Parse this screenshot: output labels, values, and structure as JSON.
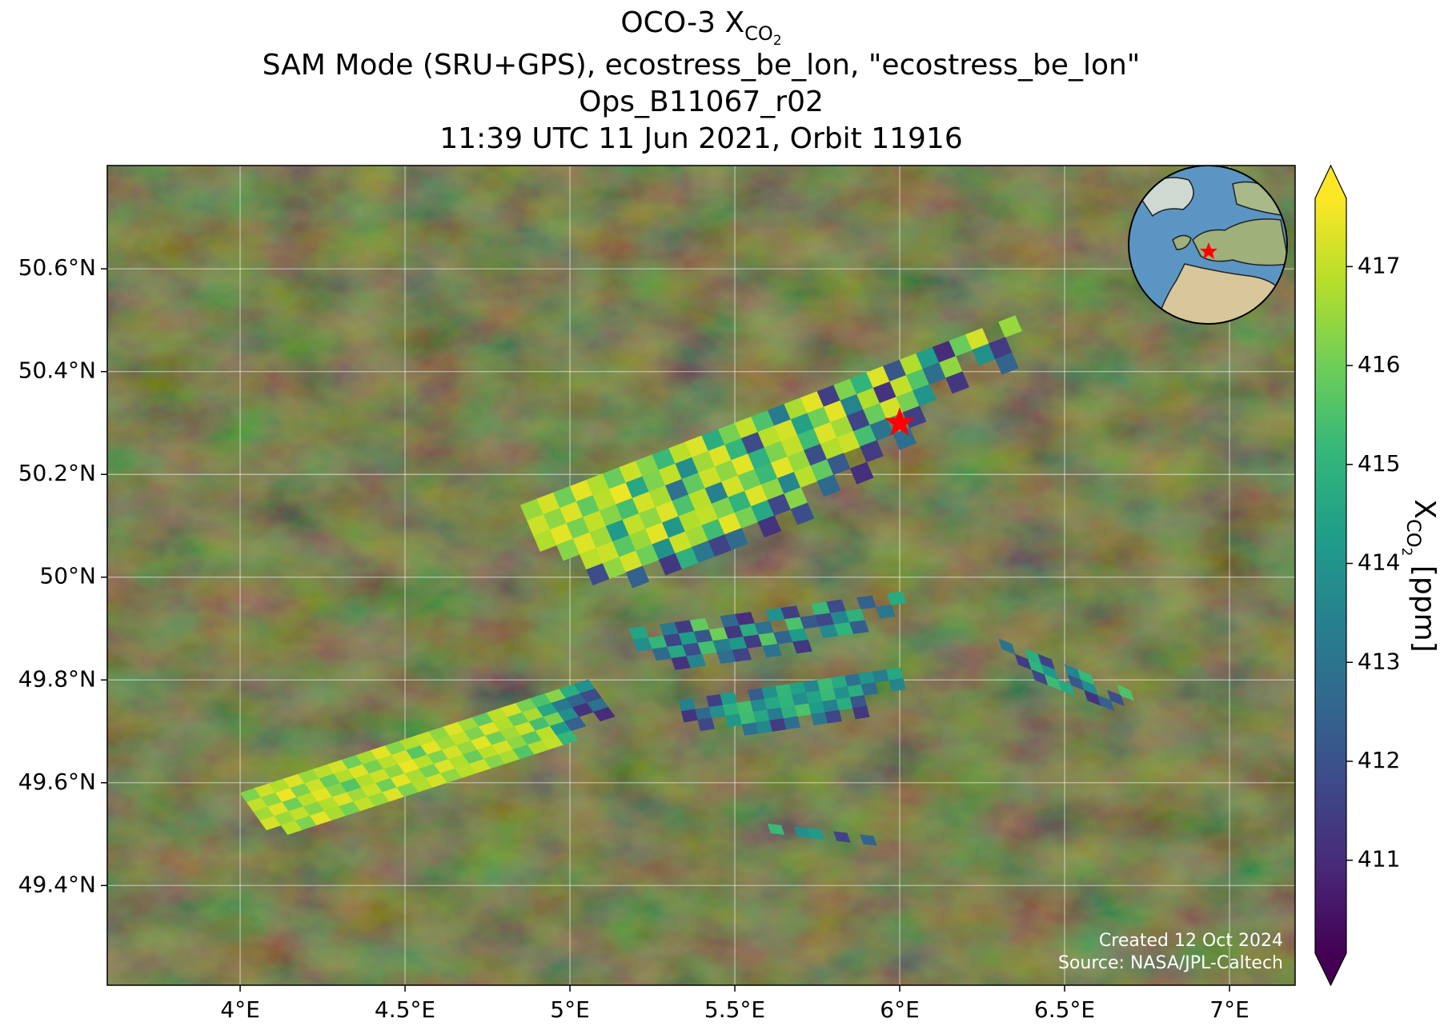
{
  "chart_data": {
    "type": "map",
    "title_parts": [
      "OCO-3 X",
      "CO",
      "2"
    ],
    "subtitle_lines": [
      "SAM Mode (SRU+GPS), ecostress_be_lon, \"ecostress_be_lon\"",
      "Ops_B11067_r02",
      "11:39 UTC 11 Jun 2021, Orbit 11916"
    ],
    "colorbar_label_parts": [
      "X",
      "CO",
      "2",
      " [ppm]"
    ],
    "annotations": [
      "Created 12 Oct 2024",
      "Source: NASA/JPL-Caltech"
    ],
    "colormap": "viridis",
    "grid": true,
    "xlim": [
      3.597,
      7.199
    ],
    "ylim": [
      49.206,
      50.801
    ],
    "xticks": [
      {
        "value": 4,
        "label": "4°E"
      },
      {
        "value": 4.5,
        "label": "4.5°E"
      },
      {
        "value": 5,
        "label": "5°E"
      },
      {
        "value": 5.5,
        "label": "5.5°E"
      },
      {
        "value": 6,
        "label": "6°E"
      },
      {
        "value": 6.5,
        "label": "6.5°E"
      },
      {
        "value": 7,
        "label": "7°E"
      }
    ],
    "yticks": [
      {
        "value": 49.4,
        "label": "49.4°N"
      },
      {
        "value": 49.6,
        "label": "49.6°N"
      },
      {
        "value": 49.8,
        "label": "49.8°N"
      },
      {
        "value": 50,
        "label": "50°N"
      },
      {
        "value": 50.2,
        "label": "50.2°N"
      },
      {
        "value": 50.4,
        "label": "50.4°N"
      },
      {
        "value": 50.6,
        "label": "50.6°N"
      }
    ],
    "clim": [
      410.06,
      417.69
    ],
    "cticks": [
      411,
      412,
      413,
      414,
      415,
      416,
      417
    ],
    "site": {
      "lon": 6.0,
      "lat": 50.3,
      "color": "#ff0000"
    },
    "swaths": [
      {
        "start": [
          4.0,
          49.58
        ],
        "along": [
          0.044,
          0.0092
        ],
        "across": [
          0.02,
          -0.018
        ],
        "rows": [
          [
            416.2,
            417.1,
            416.8,
            417.3,
            416.5,
            416.9,
            417.2,
            416.0,
            416.7,
            417.4,
            416.3,
            416.8,
            417.0,
            416.4,
            417.3,
            416.6,
            415.8,
            416.9,
            417.2,
            416.1,
            415.5,
            416.3,
            414.8,
            413.9
          ],
          [
            417.0,
            416.4,
            417.5,
            416.2,
            417.1,
            415.9,
            416.8,
            417.3,
            416.1,
            416.9,
            417.2,
            415.7,
            417.4,
            416.6,
            417.0,
            416.2,
            417.3,
            416.8,
            415.9,
            416.7,
            414.6,
            413.2,
            412.5,
            411.8
          ],
          [
            416.6,
            417.3,
            416.0,
            416.9,
            417.4,
            416.3,
            415.6,
            416.8,
            417.1,
            416.4,
            417.5,
            416.9,
            416.2,
            417.2,
            416.5,
            417.4,
            416.0,
            416.6,
            417.1,
            415.4,
            416.2,
            413.8,
            411.2,
            412.9
          ],
          [
            417.2,
            416.5,
            417.0,
            416.3,
            416.8,
            417.3,
            416.6,
            417.1,
            416.0,
            417.4,
            416.7,
            416.1,
            417.3,
            416.8,
            415.9,
            416.9,
            417.2,
            416.4,
            415.7,
            416.9,
            414.2,
            412.4,
            null,
            411.0
          ],
          [
            null,
            416.9,
            416.2,
            417.4,
            416.7,
            416.1,
            417.0,
            416.5,
            417.3,
            416.2,
            416.8,
            417.2,
            416.4,
            416.9,
            417.1,
            416.3,
            416.7,
            415.6,
            416.8,
            417.0,
            415.1,
            null,
            null,
            null
          ]
        ]
      },
      {
        "start": [
          4.85,
          50.14
        ],
        "along": [
          0.05,
          0.0123
        ],
        "across": [
          0.02,
          -0.03
        ],
        "rows": [
          [
            416.5,
            417.2,
            416.0,
            417.4,
            416.8,
            415.9,
            417.1,
            416.3,
            415.2,
            416.9,
            417.3,
            414.8,
            416.1,
            417.0,
            415.5,
            413.2,
            416.7,
            417.4,
            411.5,
            416.2,
            415.0,
            417.3,
            412.1,
            416.8,
            414.3,
            411.0,
            415.9,
            417.2,
            null,
            416.5
          ],
          [
            417.1,
            416.4,
            417.3,
            415.8,
            416.9,
            417.5,
            414.6,
            416.2,
            417.0,
            413.8,
            416.6,
            417.3,
            415.1,
            411.8,
            416.9,
            417.2,
            414.4,
            416.0,
            417.4,
            413.5,
            416.8,
            411.2,
            417.0,
            415.6,
            412.8,
            416.4,
            null,
            413.9,
            411.4,
            null
          ],
          [
            416.8,
            417.4,
            416.1,
            417.0,
            416.3,
            415.4,
            417.2,
            416.7,
            412.9,
            415.8,
            417.1,
            416.4,
            417.4,
            414.9,
            416.2,
            417.0,
            415.3,
            417.3,
            416.6,
            411.6,
            415.9,
            417.2,
            416.1,
            414.0,
            null,
            411.3,
            null,
            null,
            412.5,
            null
          ],
          [
            null,
            416.3,
            417.3,
            416.6,
            414.2,
            417.0,
            416.4,
            417.3,
            415.5,
            416.9,
            413.4,
            417.2,
            416.0,
            415.2,
            417.4,
            416.5,
            411.9,
            416.8,
            417.1,
            415.4,
            413.0,
            null,
            411.5,
            null,
            null,
            null,
            null,
            null,
            null,
            null
          ],
          [
            null,
            null,
            416.9,
            417.1,
            415.7,
            416.5,
            417.4,
            414.1,
            416.8,
            417.0,
            416.2,
            415.0,
            417.3,
            416.4,
            413.6,
            416.9,
            415.8,
            412.2,
            null,
            411.4,
            null,
            412.8,
            null,
            null,
            null,
            null,
            null,
            null,
            null,
            null
          ],
          [
            null,
            null,
            411.8,
            416.4,
            417.2,
            416.0,
            413.9,
            417.1,
            416.6,
            415.3,
            417.4,
            416.1,
            414.6,
            411.7,
            416.3,
            null,
            412.6,
            null,
            411.1,
            null,
            null,
            null,
            null,
            null,
            null,
            null,
            null,
            null,
            null,
            null
          ],
          [
            null,
            null,
            null,
            null,
            412.4,
            null,
            411.3,
            414.9,
            413.1,
            411.6,
            412.7,
            null,
            411.2,
            null,
            411.9,
            null,
            null,
            null,
            null,
            null,
            null,
            null,
            null,
            null,
            null,
            null,
            null,
            null,
            null,
            null
          ]
        ]
      },
      {
        "start": [
          5.18,
          49.9
        ],
        "along": [
          0.046,
          0.004
        ],
        "across": [
          0.012,
          -0.022
        ],
        "rows": [
          [
            414.5,
            null,
            413.2,
            411.4,
            415.8,
            null,
            412.6,
            411.1,
            null,
            413.9,
            411.5,
            null,
            415.2,
            411.8,
            null,
            412.4,
            null,
            414.7
          ],
          [
            413.8,
            415.1,
            411.6,
            414.3,
            412.1,
            416.0,
            411.3,
            414.8,
            412.9,
            null,
            415.5,
            412.2,
            411.7,
            413.6,
            414.9,
            null,
            413.1,
            null
          ],
          [
            null,
            412.7,
            414.6,
            411.9,
            415.4,
            413.3,
            414.1,
            411.4,
            415.7,
            412.5,
            414.2,
            null,
            413.7,
            415.0,
            412.3,
            null,
            null,
            null
          ],
          [
            null,
            null,
            411.2,
            413.5,
            null,
            412.8,
            411.6,
            null,
            413.0,
            null,
            411.3,
            null,
            null,
            null,
            null,
            null,
            null,
            null
          ]
        ]
      },
      {
        "start": [
          5.33,
          49.76
        ],
        "along": [
          0.042,
          0.004
        ],
        "across": [
          0.008,
          -0.021
        ],
        "rows": [
          [
            413.4,
            null,
            411.5,
            414.2,
            null,
            412.3,
            413.9,
            415.1,
            414.4,
            413.6,
            415.3,
            414.7,
            412.9,
            414.0,
            413.3,
            414.6
          ],
          [
            411.2,
            412.6,
            413.8,
            414.9,
            415.4,
            413.7,
            414.6,
            415.0,
            413.8,
            414.5,
            415.2,
            413.9,
            414.8,
            412.7,
            null,
            413.5
          ],
          [
            null,
            411.7,
            null,
            414.1,
            415.3,
            414.6,
            413.2,
            414.9,
            415.5,
            414.2,
            413.4,
            414.8,
            412.1,
            null,
            null,
            null
          ],
          [
            null,
            null,
            null,
            null,
            412.9,
            413.6,
            411.4,
            412.8,
            null,
            413.1,
            411.7,
            null,
            411.3,
            null,
            null,
            null
          ]
        ]
      },
      {
        "start": [
          6.3,
          49.88
        ],
        "along": [
          0.04,
          -0.01
        ],
        "across": [
          0.01,
          -0.02
        ],
        "rows": [
          [
            413.0,
            null,
            414.8,
            411.6,
            null,
            413.5,
            415.2,
            null,
            null,
            415.5
          ],
          [
            null,
            411.4,
            415.0,
            414.1,
            null,
            412.2,
            413.8,
            null,
            411.9,
            null
          ],
          [
            null,
            null,
            411.7,
            415.3,
            414.6,
            null,
            411.2,
            412.4,
            null,
            null
          ]
        ]
      },
      {
        "start": [
          5.6,
          49.52
        ],
        "along": [
          0.04,
          -0.003
        ],
        "across": [
          0.01,
          -0.018
        ],
        "rows": [
          [
            415.2,
            null,
            413.8,
            414.2,
            null,
            411.6,
            null,
            412.5
          ]
        ]
      }
    ]
  }
}
